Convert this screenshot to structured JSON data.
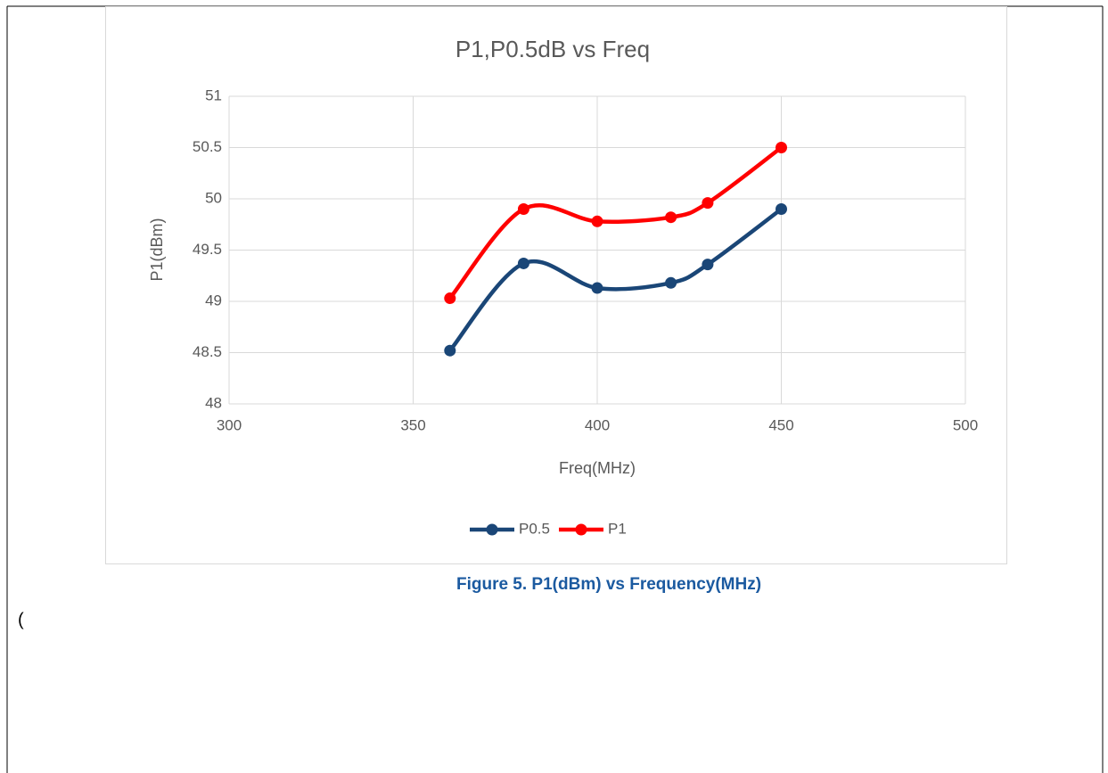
{
  "chart_data": {
    "type": "line",
    "title": "P1,P0.5dB vs Freq",
    "xlabel": "Freq(MHz)",
    "ylabel": "P1(dBm)",
    "x": [
      360,
      380,
      400,
      420,
      430,
      450
    ],
    "series": [
      {
        "name": "P0.5",
        "color": "#1a4677",
        "values": [
          48.52,
          49.37,
          49.13,
          49.18,
          49.36,
          49.9
        ]
      },
      {
        "name": "P1",
        "color": "#ff0000",
        "values": [
          49.03,
          49.9,
          49.78,
          49.82,
          49.96,
          50.5
        ]
      }
    ],
    "xlim": [
      300,
      500
    ],
    "xticks": [
      300,
      350,
      400,
      450,
      500
    ],
    "ylim": [
      48,
      51
    ],
    "yticks": [
      48,
      {
        "value": 48.5,
        "label": "48.5"
      },
      49,
      {
        "value": 49.5,
        "label": "49.5"
      },
      50,
      {
        "value": 50.5,
        "label": "50.5"
      },
      51
    ],
    "grid": true,
    "legend": "bottom",
    "smooth": true
  },
  "caption": "Figure 5. P1(dBm) vs Frequency(MHz)",
  "body_text": "("
}
